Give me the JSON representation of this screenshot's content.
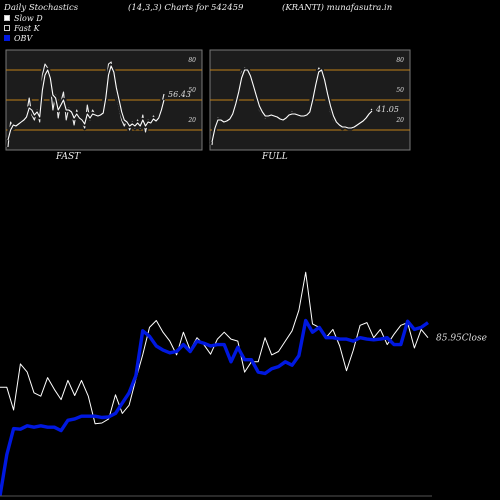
{
  "header": {
    "title": "Daily Stochastics",
    "params": "(14,3,3) Charts for 542459",
    "site": "(KRANTI) munafasutra.in"
  },
  "legend": [
    {
      "label": "Slow  D",
      "icon": "white-square"
    },
    {
      "label": "Fast K",
      "icon": "black-square"
    },
    {
      "label": "OBV",
      "icon": "blue-square"
    }
  ],
  "colors": {
    "obv": "#0018e0",
    "level": "#c08018",
    "panel": "#1c1c1c"
  },
  "chart_data": [
    {
      "type": "line",
      "label": "FAST",
      "levels": [
        80,
        50,
        20
      ],
      "ylim": [
        0,
        100
      ],
      "value_label": "56.43",
      "series": [
        {
          "name": "Fast K",
          "values": [
            3,
            28,
            22,
            26,
            25,
            30,
            28,
            36,
            52,
            35,
            30,
            40,
            28,
            75,
            86,
            82,
            65,
            40,
            55,
            32,
            48,
            58,
            30,
            42,
            38,
            25,
            40,
            30,
            28,
            22,
            45,
            30,
            40,
            35,
            34,
            36,
            38,
            62,
            86,
            88,
            70,
            55,
            42,
            30,
            24,
            30,
            20,
            28,
            22,
            30,
            22,
            35,
            18,
            30,
            26,
            34,
            28,
            34,
            45,
            56
          ]
        },
        {
          "name": "Slow  D",
          "values": [
            10,
            20,
            25,
            24,
            26,
            28,
            30,
            33,
            42,
            40,
            35,
            38,
            33,
            60,
            75,
            80,
            72,
            55,
            52,
            40,
            45,
            50,
            40,
            40,
            38,
            32,
            36,
            32,
            30,
            26,
            36,
            32,
            36,
            35,
            34,
            35,
            37,
            52,
            75,
            84,
            78,
            62,
            50,
            38,
            30,
            28,
            24,
            26,
            24,
            27,
            24,
            30,
            24,
            28,
            27,
            31,
            29,
            32,
            40,
            50
          ]
        }
      ]
    },
    {
      "type": "line",
      "label": "FULL",
      "levels": [
        80,
        50,
        20
      ],
      "ylim": [
        0,
        100
      ],
      "value_label": "41.05",
      "series": [
        {
          "name": "Fast K",
          "values": [
            5,
            25,
            32,
            30,
            28,
            30,
            32,
            38,
            50,
            62,
            78,
            82,
            80,
            72,
            60,
            50,
            40,
            35,
            32,
            35,
            36,
            34,
            32,
            30,
            30,
            34,
            36,
            38,
            36,
            35,
            34,
            34,
            36,
            40,
            55,
            70,
            82,
            80,
            65,
            50,
            38,
            30,
            26,
            24,
            22,
            24,
            22,
            22,
            24,
            26,
            28,
            30,
            34,
            38,
            41
          ]
        },
        {
          "name": "Slow  D",
          "values": [
            8,
            22,
            30,
            30,
            28,
            29,
            31,
            36,
            46,
            58,
            72,
            80,
            80,
            74,
            64,
            54,
            44,
            38,
            34,
            34,
            35,
            34,
            33,
            31,
            30,
            32,
            35,
            36,
            36,
            35,
            34,
            34,
            35,
            38,
            50,
            65,
            78,
            80,
            70,
            56,
            44,
            34,
            28,
            25,
            23,
            23,
            22,
            22,
            23,
            25,
            27,
            29,
            32,
            36,
            39
          ]
        }
      ]
    },
    {
      "type": "line",
      "value_label": "85.95",
      "value_suffix": "Close",
      "series": [
        {
          "name": "Price",
          "values": [
            78,
            78,
            45,
            112,
            100,
            70,
            65,
            92,
            75,
            60,
            88,
            66,
            88,
            65,
            25,
            26,
            32,
            67,
            40,
            52,
            90,
            125,
            165,
            175,
            158,
            145,
            125,
            158,
            132,
            150,
            140,
            126,
            148,
            158,
            148,
            145,
            100,
            115,
            115,
            150,
            125,
            130,
            145,
            160,
            190,
            245,
            170,
            165,
            150,
            162,
            138,
            102,
            132,
            168,
            172,
            150,
            162,
            140,
            155,
            168,
            172,
            135,
            162,
            150
          ]
        },
        {
          "name": "OBV",
          "values": [
            -80,
            -20,
            18,
            17,
            22,
            20,
            22,
            20,
            20,
            15,
            30,
            32,
            36,
            36,
            36,
            34,
            35,
            40,
            55,
            70,
            95,
            160,
            152,
            138,
            132,
            128,
            130,
            140,
            130,
            145,
            142,
            138,
            140,
            140,
            115,
            136,
            118,
            118,
            100,
            98,
            105,
            108,
            115,
            110,
            124,
            175,
            158,
            165,
            150,
            150,
            148,
            148,
            145,
            150,
            148,
            147,
            148,
            150,
            140,
            140,
            174,
            162,
            165,
            172
          ]
        }
      ]
    }
  ]
}
